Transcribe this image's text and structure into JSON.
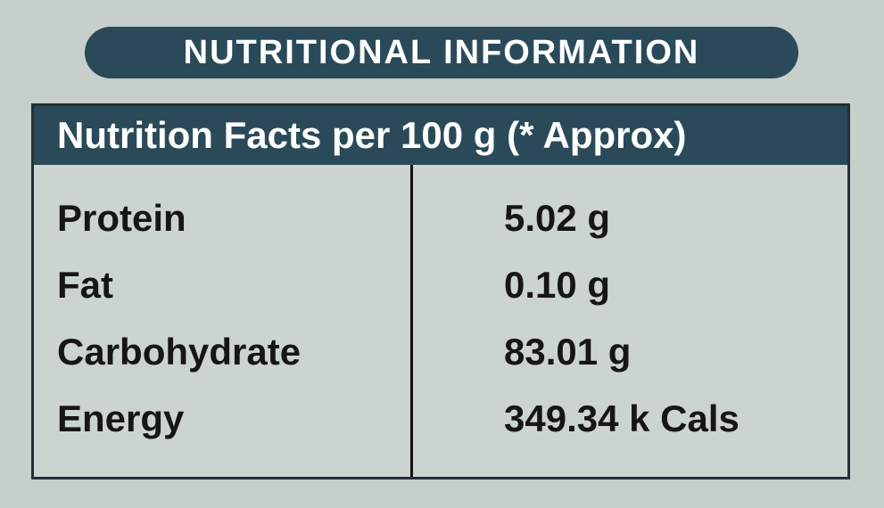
{
  "colors": {
    "page_background": "#c7cfcb",
    "accent_dark_teal": "#2b4a59",
    "table_border": "#232f36",
    "table_background": "#ccd4d0",
    "text_dark": "#161616",
    "text_light": "#ffffff"
  },
  "banner": {
    "title": "NUTRITIONAL INFORMATION"
  },
  "table": {
    "header": "Nutrition Facts per 100 g (* Approx)",
    "rows": [
      {
        "label": "Protein",
        "value": "5.02 g"
      },
      {
        "label": "Fat",
        "value": "0.10 g"
      },
      {
        "label": "Carbohydrate",
        "value": "83.01 g"
      },
      {
        "label": "Energy",
        "value": "349.34 k Cals"
      }
    ]
  }
}
